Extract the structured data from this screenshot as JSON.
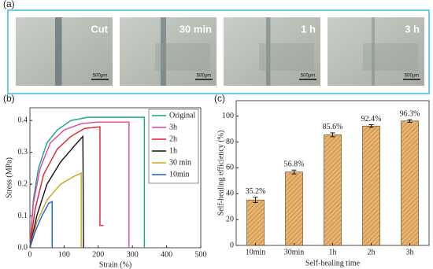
{
  "panels": {
    "a": {
      "panel_label": "(a)",
      "images": [
        {
          "label": "Cut",
          "scale_bar": "500μm"
        },
        {
          "label": "30 min",
          "scale_bar": "500μm"
        },
        {
          "label": "1 h",
          "scale_bar": "500μm"
        },
        {
          "label": "3 h",
          "scale_bar": "500μm"
        }
      ]
    }
  },
  "chart_data": [
    {
      "type": "line",
      "panel_label": "(b)",
      "x_label": "Strain (%)",
      "y_label": "Stress (MPa)",
      "xlim": [
        0,
        500
      ],
      "xticks": [
        0,
        100,
        200,
        300,
        400,
        500
      ],
      "ylim": [
        0,
        0.44
      ],
      "yticks": [
        {
          "value": 0,
          "label": "0.0"
        },
        0.1,
        0.2,
        0.3,
        0.4
      ],
      "series": [
        {
          "name": "Original",
          "color": "#1aa384",
          "x": [
            0,
            10,
            25,
            50,
            80,
            120,
            170,
            250,
            335,
            335
          ],
          "values": [
            0,
            0.15,
            0.25,
            0.33,
            0.37,
            0.4,
            0.41,
            0.41,
            0.41,
            0
          ]
        },
        {
          "name": "3h",
          "color": "#e040a0",
          "x": [
            0,
            10,
            30,
            60,
            100,
            150,
            200,
            290,
            290
          ],
          "values": [
            0,
            0.14,
            0.25,
            0.33,
            0.37,
            0.39,
            0.395,
            0.395,
            0
          ]
        },
        {
          "name": "2h",
          "color": "#e02028",
          "x": [
            0,
            15,
            40,
            80,
            120,
            160,
            205,
            205,
            215,
            215
          ],
          "values": [
            0,
            0.12,
            0.23,
            0.31,
            0.35,
            0.375,
            0.38,
            0.07,
            0.07,
            0.07
          ]
        },
        {
          "name": "1h",
          "color": "#111111",
          "x": [
            0,
            20,
            50,
            90,
            130,
            155,
            157
          ],
          "values": [
            0,
            0.1,
            0.2,
            0.27,
            0.32,
            0.35,
            0.0
          ]
        },
        {
          "name": "30 min",
          "color": "#d4a21a",
          "x": [
            0,
            20,
            50,
            90,
            130,
            150,
            150
          ],
          "values": [
            0,
            0.08,
            0.15,
            0.2,
            0.225,
            0.235,
            0
          ]
        },
        {
          "name": "10min",
          "color": "#1464d4",
          "x": [
            0,
            15,
            35,
            55,
            65,
            65
          ],
          "values": [
            0,
            0.05,
            0.1,
            0.14,
            0.145,
            0
          ]
        }
      ]
    },
    {
      "type": "bar",
      "panel_label": "(c)",
      "x_label": "Self-healing time",
      "y_label": "Self-healing efficiency (%)",
      "categories": [
        "10min",
        "30min",
        "1h",
        "2h",
        "3h"
      ],
      "values": [
        35.2,
        56.8,
        85.6,
        92.4,
        96.3
      ],
      "value_labels": [
        "35.2%",
        "56.8%",
        "85.6%",
        "92.4%",
        "96.3%"
      ],
      "errors": [
        2,
        1.5,
        1.5,
        1,
        1
      ],
      "color": "#e9b46e",
      "ylim": [
        0,
        112
      ],
      "yticks": [
        0,
        20,
        40,
        60,
        80,
        100
      ]
    }
  ]
}
